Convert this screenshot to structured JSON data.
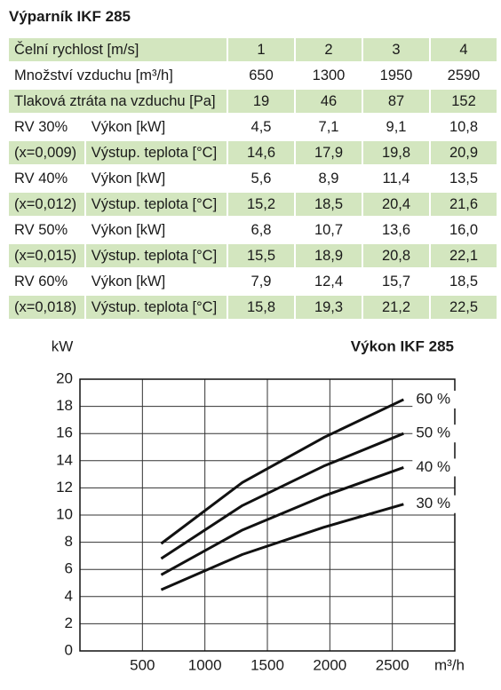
{
  "header": {
    "title": "Výparník IKF 285"
  },
  "table": {
    "rows": [
      [
        "Čelní rychlost [m/s]",
        "1",
        "2",
        "3",
        "4"
      ],
      [
        "Množství vzduchu [m³/h]",
        "650",
        "1300",
        "1950",
        "2590"
      ],
      [
        "Tlaková ztráta na vzduchu [Pa]",
        "19",
        "46",
        "87",
        "152"
      ],
      [
        "RV 30%",
        "Výkon [kW]",
        "4,5",
        "7,1",
        "9,1",
        "10,8"
      ],
      [
        "(x=0,009)",
        "Výstup. teplota [°C]",
        "14,6",
        "17,9",
        "19,8",
        "20,9"
      ],
      [
        "RV 40%",
        "Výkon [kW]",
        "5,6",
        "8,9",
        "11,4",
        "13,5"
      ],
      [
        "(x=0,012)",
        "Výstup. teplota [°C]",
        "15,2",
        "18,5",
        "20,4",
        "21,6"
      ],
      [
        "RV 50%",
        "Výkon [kW]",
        "6,8",
        "10,7",
        "13,6",
        "16,0"
      ],
      [
        "(x=0,015)",
        "Výstup. teplota [°C]",
        "15,5",
        "18,9",
        "20,8",
        "22,1"
      ],
      [
        "RV 60%",
        "Výkon [kW]",
        "7,9",
        "12,4",
        "15,7",
        "18,5"
      ],
      [
        "(x=0,018)",
        "Výstup. teplota [°C]",
        "15,8",
        "19,3",
        "21,2",
        "22,5"
      ]
    ]
  },
  "chart_data": {
    "type": "line",
    "title": "Výkon IKF 285",
    "y_label": "kW",
    "x_label": "m³/h",
    "x": [
      650,
      1300,
      1950,
      2590
    ],
    "series": [
      {
        "name": "30 %",
        "color": "#111111",
        "values": [
          4.5,
          7.1,
          9.1,
          10.8
        ]
      },
      {
        "name": "40 %",
        "color": "#111111",
        "values": [
          5.6,
          8.9,
          11.4,
          13.5
        ]
      },
      {
        "name": "50 %",
        "color": "#111111",
        "values": [
          6.8,
          10.7,
          13.6,
          16.0
        ]
      },
      {
        "name": "60 %",
        "color": "#111111",
        "values": [
          7.9,
          12.4,
          15.7,
          18.5
        ]
      }
    ],
    "xlim": [
      0,
      3000
    ],
    "xticks": [
      500,
      1000,
      1500,
      2000,
      2500
    ],
    "ylim": [
      0,
      20
    ],
    "yticks": [
      0,
      2,
      4,
      6,
      8,
      10,
      12,
      14,
      16,
      18,
      20
    ],
    "grid": true
  }
}
